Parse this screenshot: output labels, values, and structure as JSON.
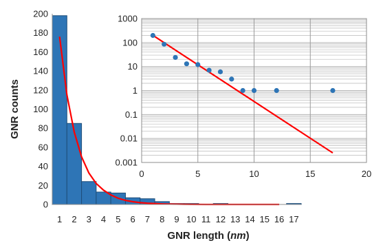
{
  "chart_data": [
    {
      "type": "bar",
      "categories": [
        "1",
        "2",
        "3",
        "4",
        "5",
        "6",
        "7",
        "8",
        "9",
        "10",
        "11",
        "12",
        "13",
        "14",
        "15",
        "16",
        "17"
      ],
      "series": [
        {
          "values": [
            198,
            85,
            24,
            13,
            12,
            7,
            6,
            3,
            1,
            1,
            0,
            1,
            0,
            0,
            0,
            0,
            1
          ]
        }
      ],
      "fit_curve": {
        "x": [
          1.0,
          1.5,
          2.0,
          2.5,
          3.0,
          3.5,
          4.0,
          4.5,
          5.0,
          5.5,
          6.0,
          6.5,
          7.0,
          7.5,
          8.0,
          8.5,
          9.0,
          9.5,
          10.0,
          11.0,
          12.0,
          13.0,
          14.0,
          15.0,
          16.0
        ],
        "y": [
          176,
          115,
          76,
          50,
          33,
          22,
          15,
          10,
          6.5,
          4.3,
          2.9,
          1.9,
          1.3,
          0.9,
          0.6,
          0.4,
          0.3,
          0.2,
          0.1,
          0,
          0,
          0,
          0,
          0,
          0
        ]
      },
      "xlabel": "GNR length (nm)",
      "ylabel": "GNR counts",
      "ylim": [
        0,
        200
      ],
      "yticks": [
        "0",
        "20",
        "40",
        "60",
        "80",
        "100",
        "120",
        "140",
        "160",
        "180",
        "200"
      ],
      "grid": false,
      "colors": {
        "bars": "#2e75b6",
        "bar_edge": "#1f4e79",
        "fit": "#ff0000"
      }
    },
    {
      "type": "scatter",
      "x": [
        1,
        2,
        3,
        4,
        5,
        6,
        7,
        8,
        9,
        10,
        12,
        17
      ],
      "y": [
        198,
        85,
        24,
        13,
        12,
        7,
        6,
        3,
        1,
        1,
        1,
        1
      ],
      "fit_line": {
        "x": [
          1,
          17
        ],
        "y": [
          200,
          0.0025
        ]
      },
      "xlim": [
        0,
        20
      ],
      "xticks": [
        "0",
        "5",
        "10",
        "15",
        "20"
      ],
      "ylim": [
        0.001,
        1000
      ],
      "yscale": "log",
      "yticks": [
        "0.001",
        "0.01",
        "0.1",
        "1",
        "10",
        "100",
        "1000"
      ],
      "grid": true,
      "colors": {
        "points": "#2e75b6",
        "fit": "#ff0000",
        "grid": "#b8b8b8"
      }
    }
  ]
}
